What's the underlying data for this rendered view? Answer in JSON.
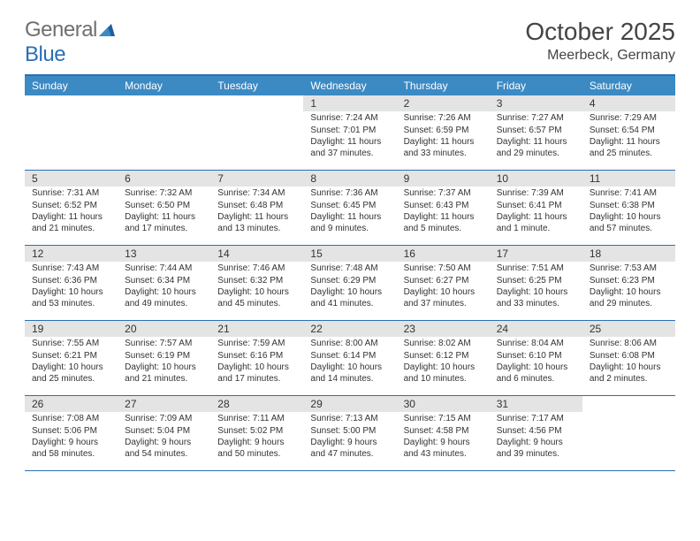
{
  "logo": {
    "general": "General",
    "blue": "Blue"
  },
  "title": "October 2025",
  "location": "Meerbeck, Germany",
  "style": {
    "accent": "#3b8ac4",
    "border": "#2a6fb5",
    "daynum_bg": "#e4e4e4",
    "background": "#ffffff",
    "logo_gray": "#6f6f6f",
    "title_fontsize": 28,
    "location_fontsize": 16,
    "dow_fontsize": 12,
    "daynum_fontsize": 12,
    "cell_fontsize": 10
  },
  "dow": [
    "Sunday",
    "Monday",
    "Tuesday",
    "Wednesday",
    "Thursday",
    "Friday",
    "Saturday"
  ],
  "weeks": [
    [
      {
        "day": "",
        "sunrise": "",
        "sunset": "",
        "daylight": ""
      },
      {
        "day": "",
        "sunrise": "",
        "sunset": "",
        "daylight": ""
      },
      {
        "day": "",
        "sunrise": "",
        "sunset": "",
        "daylight": ""
      },
      {
        "day": "1",
        "sunrise": "Sunrise: 7:24 AM",
        "sunset": "Sunset: 7:01 PM",
        "daylight": "Daylight: 11 hours and 37 minutes."
      },
      {
        "day": "2",
        "sunrise": "Sunrise: 7:26 AM",
        "sunset": "Sunset: 6:59 PM",
        "daylight": "Daylight: 11 hours and 33 minutes."
      },
      {
        "day": "3",
        "sunrise": "Sunrise: 7:27 AM",
        "sunset": "Sunset: 6:57 PM",
        "daylight": "Daylight: 11 hours and 29 minutes."
      },
      {
        "day": "4",
        "sunrise": "Sunrise: 7:29 AM",
        "sunset": "Sunset: 6:54 PM",
        "daylight": "Daylight: 11 hours and 25 minutes."
      }
    ],
    [
      {
        "day": "5",
        "sunrise": "Sunrise: 7:31 AM",
        "sunset": "Sunset: 6:52 PM",
        "daylight": "Daylight: 11 hours and 21 minutes."
      },
      {
        "day": "6",
        "sunrise": "Sunrise: 7:32 AM",
        "sunset": "Sunset: 6:50 PM",
        "daylight": "Daylight: 11 hours and 17 minutes."
      },
      {
        "day": "7",
        "sunrise": "Sunrise: 7:34 AM",
        "sunset": "Sunset: 6:48 PM",
        "daylight": "Daylight: 11 hours and 13 minutes."
      },
      {
        "day": "8",
        "sunrise": "Sunrise: 7:36 AM",
        "sunset": "Sunset: 6:45 PM",
        "daylight": "Daylight: 11 hours and 9 minutes."
      },
      {
        "day": "9",
        "sunrise": "Sunrise: 7:37 AM",
        "sunset": "Sunset: 6:43 PM",
        "daylight": "Daylight: 11 hours and 5 minutes."
      },
      {
        "day": "10",
        "sunrise": "Sunrise: 7:39 AM",
        "sunset": "Sunset: 6:41 PM",
        "daylight": "Daylight: 11 hours and 1 minute."
      },
      {
        "day": "11",
        "sunrise": "Sunrise: 7:41 AM",
        "sunset": "Sunset: 6:38 PM",
        "daylight": "Daylight: 10 hours and 57 minutes."
      }
    ],
    [
      {
        "day": "12",
        "sunrise": "Sunrise: 7:43 AM",
        "sunset": "Sunset: 6:36 PM",
        "daylight": "Daylight: 10 hours and 53 minutes."
      },
      {
        "day": "13",
        "sunrise": "Sunrise: 7:44 AM",
        "sunset": "Sunset: 6:34 PM",
        "daylight": "Daylight: 10 hours and 49 minutes."
      },
      {
        "day": "14",
        "sunrise": "Sunrise: 7:46 AM",
        "sunset": "Sunset: 6:32 PM",
        "daylight": "Daylight: 10 hours and 45 minutes."
      },
      {
        "day": "15",
        "sunrise": "Sunrise: 7:48 AM",
        "sunset": "Sunset: 6:29 PM",
        "daylight": "Daylight: 10 hours and 41 minutes."
      },
      {
        "day": "16",
        "sunrise": "Sunrise: 7:50 AM",
        "sunset": "Sunset: 6:27 PM",
        "daylight": "Daylight: 10 hours and 37 minutes."
      },
      {
        "day": "17",
        "sunrise": "Sunrise: 7:51 AM",
        "sunset": "Sunset: 6:25 PM",
        "daylight": "Daylight: 10 hours and 33 minutes."
      },
      {
        "day": "18",
        "sunrise": "Sunrise: 7:53 AM",
        "sunset": "Sunset: 6:23 PM",
        "daylight": "Daylight: 10 hours and 29 minutes."
      }
    ],
    [
      {
        "day": "19",
        "sunrise": "Sunrise: 7:55 AM",
        "sunset": "Sunset: 6:21 PM",
        "daylight": "Daylight: 10 hours and 25 minutes."
      },
      {
        "day": "20",
        "sunrise": "Sunrise: 7:57 AM",
        "sunset": "Sunset: 6:19 PM",
        "daylight": "Daylight: 10 hours and 21 minutes."
      },
      {
        "day": "21",
        "sunrise": "Sunrise: 7:59 AM",
        "sunset": "Sunset: 6:16 PM",
        "daylight": "Daylight: 10 hours and 17 minutes."
      },
      {
        "day": "22",
        "sunrise": "Sunrise: 8:00 AM",
        "sunset": "Sunset: 6:14 PM",
        "daylight": "Daylight: 10 hours and 14 minutes."
      },
      {
        "day": "23",
        "sunrise": "Sunrise: 8:02 AM",
        "sunset": "Sunset: 6:12 PM",
        "daylight": "Daylight: 10 hours and 10 minutes."
      },
      {
        "day": "24",
        "sunrise": "Sunrise: 8:04 AM",
        "sunset": "Sunset: 6:10 PM",
        "daylight": "Daylight: 10 hours and 6 minutes."
      },
      {
        "day": "25",
        "sunrise": "Sunrise: 8:06 AM",
        "sunset": "Sunset: 6:08 PM",
        "daylight": "Daylight: 10 hours and 2 minutes."
      }
    ],
    [
      {
        "day": "26",
        "sunrise": "Sunrise: 7:08 AM",
        "sunset": "Sunset: 5:06 PM",
        "daylight": "Daylight: 9 hours and 58 minutes."
      },
      {
        "day": "27",
        "sunrise": "Sunrise: 7:09 AM",
        "sunset": "Sunset: 5:04 PM",
        "daylight": "Daylight: 9 hours and 54 minutes."
      },
      {
        "day": "28",
        "sunrise": "Sunrise: 7:11 AM",
        "sunset": "Sunset: 5:02 PM",
        "daylight": "Daylight: 9 hours and 50 minutes."
      },
      {
        "day": "29",
        "sunrise": "Sunrise: 7:13 AM",
        "sunset": "Sunset: 5:00 PM",
        "daylight": "Daylight: 9 hours and 47 minutes."
      },
      {
        "day": "30",
        "sunrise": "Sunrise: 7:15 AM",
        "sunset": "Sunset: 4:58 PM",
        "daylight": "Daylight: 9 hours and 43 minutes."
      },
      {
        "day": "31",
        "sunrise": "Sunrise: 7:17 AM",
        "sunset": "Sunset: 4:56 PM",
        "daylight": "Daylight: 9 hours and 39 minutes."
      },
      {
        "day": "",
        "sunrise": "",
        "sunset": "",
        "daylight": ""
      }
    ]
  ]
}
